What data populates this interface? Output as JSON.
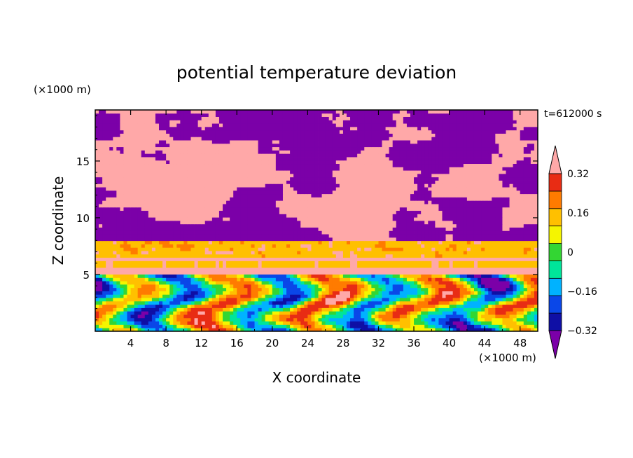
{
  "chart_data": {
    "type": "heatmap",
    "title": "potential temperature deviation",
    "xlabel": "X coordinate",
    "ylabel": "Z coordinate",
    "x_unit": "(×1000 m)",
    "y_unit": "(×1000 m)",
    "time_label": "t=612000 s",
    "xlim": [
      0,
      50
    ],
    "ylim": [
      0,
      19.5
    ],
    "x_ticks": [
      4,
      8,
      12,
      16,
      20,
      24,
      28,
      32,
      36,
      40,
      44,
      48
    ],
    "y_ticks": [
      5,
      10,
      15
    ],
    "colorbar": {
      "levels": [
        -0.4,
        -0.32,
        -0.24,
        -0.16,
        -0.08,
        0,
        0.08,
        0.16,
        0.24,
        0.32,
        0.4
      ],
      "tick_labels": [
        "0.32",
        "0.16",
        "0",
        "−0.16",
        "−0.32"
      ],
      "tick_values": [
        0.32,
        0.16,
        0,
        -0.16,
        -0.32
      ],
      "colors": [
        "#7b00a8",
        "#0f0fa5",
        "#0a47e8",
        "#00b2ff",
        "#00e59a",
        "#33d633",
        "#f5f500",
        "#ffc000",
        "#ff7b00",
        "#e82c14",
        "#ffa8a8"
      ],
      "extend": "both"
    }
  }
}
